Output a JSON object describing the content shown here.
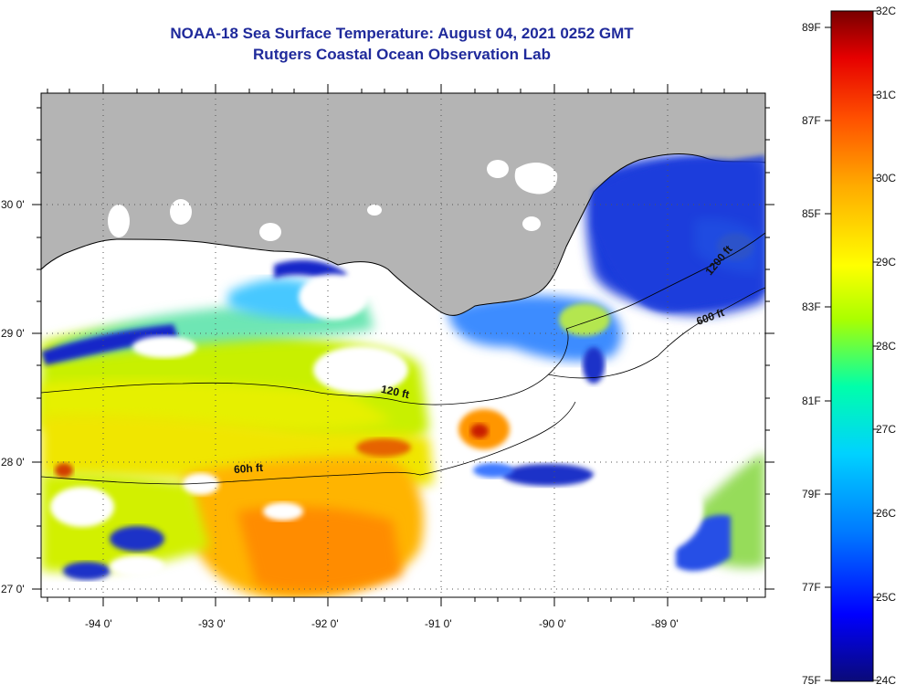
{
  "header": {
    "title_line1": "NOAA-18 Sea Surface Temperature:  August 04, 2021 0252 GMT",
    "title_line2": "Rutgers Coastal Ocean Observation Lab"
  },
  "map": {
    "lat_labels": [
      "30 0'",
      "29 0'",
      "28 0'",
      "27 0'"
    ],
    "lon_labels": [
      "-94 0'",
      "-93 0'",
      "-92 0'",
      "-91 0'",
      "-90 0'",
      "-89 0'"
    ],
    "contour_labels": [
      "120 ft",
      "60h ft",
      "600 ft",
      "1200 ft"
    ],
    "colors": {
      "land": "#b4b4b4",
      "ocean_cloud": "#ffffff",
      "contour": "#000000"
    }
  },
  "colorbar": {
    "fahrenheit_labels": [
      "89F",
      "87F",
      "85F",
      "83F",
      "81F",
      "79F",
      "77F",
      "75F"
    ],
    "celsius_labels": [
      "32C",
      "31C",
      "30C",
      "29C",
      "28C",
      "27C",
      "26C",
      "25C",
      "24C"
    ],
    "gradient": [
      "#0a0a78",
      "#0000ff",
      "#0078ff",
      "#00d2ff",
      "#00ffaa",
      "#aaff00",
      "#ffff00",
      "#ffaa00",
      "#ff5000",
      "#e60000",
      "#780000"
    ]
  }
}
